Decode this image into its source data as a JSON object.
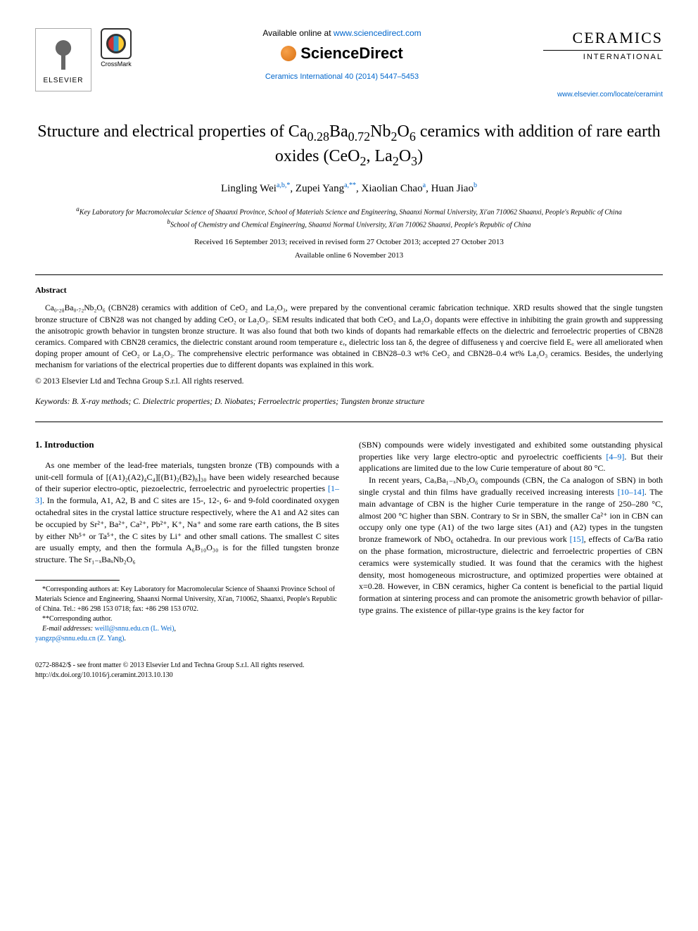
{
  "header": {
    "elsevier_label": "ELSEVIER",
    "crossmark_label": "CrossMark",
    "available_text": "Available online at ",
    "available_url": "www.sciencedirect.com",
    "sciencedirect": "ScienceDirect",
    "journal_ref": "Ceramics International 40 (2014) 5447–5453",
    "journal_title": "CERAMICS",
    "journal_sub": "INTERNATIONAL",
    "journal_url": "www.elsevier.com/locate/ceramint"
  },
  "title_parts": {
    "p1": "Structure and electrical properties of Ca",
    "sub1": "0.28",
    "p2": "Ba",
    "sub2": "0.72",
    "p3": "Nb",
    "sub3": "2",
    "p4": "O",
    "sub4": "6",
    "p5": " ceramics with addition of rare earth oxides (CeO",
    "sub5": "2",
    "p6": ", La",
    "sub6": "2",
    "p7": "O",
    "sub7": "3",
    "p8": ")"
  },
  "authors": {
    "a1": "Lingling Wei",
    "s1": "a,b,*",
    "a2": "Zupei Yang",
    "s2": "a,**",
    "a3": "Xiaolian Chao",
    "s3": "a",
    "a4": "Huan Jiao",
    "s4": "b"
  },
  "affiliations": {
    "a_label": "a",
    "a_text": "Key Laboratory for Macromolecular Science of Shaanxi Province, School of Materials Science and Engineering, Shaanxi Normal University, Xi'an 710062 Shaanxi, People's Republic of China",
    "b_label": "b",
    "b_text": "School of Chemistry and Chemical Engineering, Shaanxi Normal University, Xi'an 710062 Shaanxi, People's Republic of China"
  },
  "dates": {
    "received": "Received 16 September 2013; received in revised form 27 October 2013; accepted 27 October 2013",
    "online": "Available online 6 November 2013"
  },
  "abstract": {
    "heading": "Abstract",
    "text": "Ca₀.₂₈Ba₀.₇₂Nb₂O₆ (CBN28) ceramics with addition of CeO₂ and La₂O₃, were prepared by the conventional ceramic fabrication technique. XRD results showed that the single tungsten bronze structure of CBN28 was not changed by adding CeO₂ or La₂O₃. SEM results indicated that both CeO₂ and La₂O₃ dopants were effective in inhibiting the grain growth and suppressing the anisotropic growth behavior in tungsten bronze structure. It was also found that both two kinds of dopants had remarkable effects on the dielectric and ferroelectric properties of CBN28 ceramics. Compared with CBN28 ceramics, the dielectric constant around room temperature εᵣ, dielectric loss tan δ, the degree of diffuseness γ and coercive field E꜀ were all ameliorated when doping proper amount of CeO₂ or La₂O₃. The comprehensive electric performance was obtained in CBN28–0.3 wt% CeO₂ and CBN28–0.4 wt% La₂O₃ ceramics. Besides, the underlying mechanism for variations of the electrical properties due to different dopants was explained in this work.",
    "copyright": "© 2013 Elsevier Ltd and Techna Group S.r.l. All rights reserved."
  },
  "keywords": {
    "label": "Keywords:",
    "text": " B. X-ray methods; C. Dielectric properties; D. Niobates; Ferroelectric properties; Tungsten bronze structure"
  },
  "intro": {
    "heading": "1. Introduction",
    "col1_p1a": "As one member of the lead-free materials, tungsten bronze (TB) compounds with a unit-cell formula of [(A1)₂(A2)₄C₄][(B1)₂(B2)₈]₃₀ have been widely researched because of their superior electro-optic, piezoelectric, ferroelectric and pyroelectric properties ",
    "ref1": "[1–3]",
    "col1_p1b": ". In the formula, A1, A2, B and C sites are 15-, 12-, 6- and 9-fold coordinated oxygen octahedral sites in the crystal lattice structure respectively, where the A1 and A2 sites can be occupied by Sr²⁺, Ba²⁺, Ca²⁺, Pb²⁺, K⁺, Na⁺ and some rare earth cations, the B sites by either Nb⁵⁺ or Ta⁵⁺, the C sites by Li⁺ and other small cations. The smallest C sites are usually empty, and then the formula A₆B₁₀O₃₀ is for the filled tungsten bronze structure. The Sr₁₋ₓBaₓNb₂O₆",
    "col2_p1a": "(SBN) compounds were widely investigated and exhibited some outstanding physical properties like very large electro-optic and pyroelectric coefficients ",
    "ref2": "[4–9]",
    "col2_p1b": ". But their applications are limited due to the low Curie temperature of about 80 °C.",
    "col2_p2a": "In recent years, CaₓBa₁₋ₓNb₂O₆ compounds (CBN, the Ca analogon of SBN) in both single crystal and thin films have gradually received increasing interests ",
    "ref3": "[10–14]",
    "col2_p2b": ". The main advantage of CBN is the higher Curie temperature in the range of 250–280 °C, almost 200 °C higher than SBN. Contrary to Sr in SBN, the smaller Ca²⁺ ion in CBN can occupy only one type (A1) of the two large sites (A1) and (A2) types in the tungsten bronze framework of NbO₆ octahedra. In our previous work ",
    "ref4": "[15]",
    "col2_p2c": ", effects of Ca/Ba ratio on the phase formation, microstructure, dielectric and ferroelectric properties of CBN ceramics were systemically studied. It was found that the ceramics with the highest density, most homogeneous microstructure, and optimized properties were obtained at x=0.28. However, in CBN ceramics, higher Ca content is beneficial to the partial liquid formation at sintering process and can promote the anisometric growth behavior of pillar-type grains. The existence of pillar-type grains is the key factor for"
  },
  "footnotes": {
    "corr1": "*Corresponding authors at: Key Laboratory for Macromolecular Science of Shaanxi Province School of Materials Science and Engineering, Shaanxi Normal University, Xi'an, 710062, Shaanxi, People's Republic of China. Tel.: +86 298 153 0718; fax: +86 298 153 0702.",
    "corr2": "**Corresponding author.",
    "email_label": "E-mail addresses: ",
    "email1": "weill@snnu.edu.cn (L. Wei)",
    "email_sep": ", ",
    "email2": "yangzp@snnu.edu.cn (Z. Yang)",
    "email_end": "."
  },
  "bottom": {
    "line1": "0272-8842/$ - see front matter © 2013 Elsevier Ltd and Techna Group S.r.l. All rights reserved.",
    "line2": "http://dx.doi.org/10.1016/j.ceramint.2013.10.130"
  },
  "colors": {
    "link": "#0066cc",
    "text": "#000000",
    "bg": "#ffffff"
  }
}
